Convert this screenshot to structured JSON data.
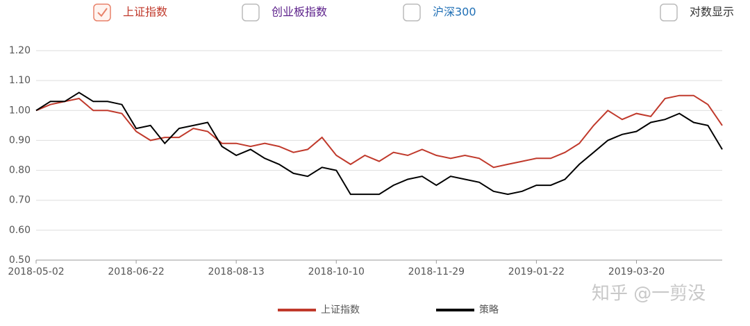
{
  "controls": [
    {
      "label": "上证指数",
      "checked": true,
      "color": "#c0392b"
    },
    {
      "label": "创业板指数",
      "checked": false,
      "color": "#5b1f8a"
    },
    {
      "label": "沪深300",
      "checked": false,
      "color": "#1f6fb5"
    },
    {
      "label": "对数显示",
      "checked": false,
      "color": "#333333"
    }
  ],
  "watermark": "知乎 @一剪没",
  "chart_data": {
    "type": "line",
    "categories": [
      "2018-05-02",
      null,
      null,
      null,
      null,
      null,
      null,
      "2018-06-22",
      null,
      null,
      null,
      null,
      null,
      null,
      "2018-08-13",
      null,
      null,
      null,
      null,
      null,
      null,
      "2018-10-10",
      null,
      null,
      null,
      null,
      null,
      null,
      "2018-11-29",
      null,
      null,
      null,
      null,
      null,
      null,
      "2019-01-22",
      null,
      null,
      null,
      null,
      null,
      null,
      "2019-03-20",
      null,
      null,
      null,
      null,
      null,
      null
    ],
    "series": [
      {
        "name": "上证指数",
        "color": "#c0392b",
        "values": [
          1.0,
          1.02,
          1.03,
          1.04,
          1.0,
          1.0,
          0.99,
          0.93,
          0.9,
          0.91,
          0.91,
          0.94,
          0.93,
          0.89,
          0.89,
          0.88,
          0.89,
          0.88,
          0.86,
          0.87,
          0.91,
          0.85,
          0.82,
          0.85,
          0.83,
          0.86,
          0.85,
          0.87,
          0.85,
          0.84,
          0.85,
          0.84,
          0.81,
          0.82,
          0.83,
          0.84,
          0.84,
          0.86,
          0.89,
          0.95,
          1.0,
          0.97,
          0.99,
          0.98,
          1.04,
          1.05,
          1.05,
          1.02,
          0.95
        ]
      },
      {
        "name": "策略",
        "color": "#000000",
        "values": [
          1.0,
          1.03,
          1.03,
          1.06,
          1.03,
          1.03,
          1.02,
          0.94,
          0.95,
          0.89,
          0.94,
          0.95,
          0.96,
          0.88,
          0.85,
          0.87,
          0.84,
          0.82,
          0.79,
          0.78,
          0.81,
          0.8,
          0.72,
          0.72,
          0.72,
          0.75,
          0.77,
          0.78,
          0.75,
          0.78,
          0.77,
          0.76,
          0.73,
          0.72,
          0.73,
          0.75,
          0.75,
          0.77,
          0.82,
          0.86,
          0.9,
          0.92,
          0.93,
          0.96,
          0.97,
          0.99,
          0.96,
          0.95,
          0.87
        ]
      }
    ],
    "ylim": [
      0.5,
      1.2
    ],
    "yticks": [
      {
        "value": 0.5,
        "label": "0.50"
      },
      {
        "value": 0.6,
        "label": "0.60"
      },
      {
        "value": 0.7,
        "label": "0.70"
      },
      {
        "value": 0.8,
        "label": "0.80"
      },
      {
        "value": 0.9,
        "label": "0.90"
      },
      {
        "value": 1.0,
        "label": "1.00"
      },
      {
        "value": 1.1,
        "label": "1.10"
      },
      {
        "value": 1.2,
        "label": "1.20"
      }
    ],
    "grid": true,
    "legend": "bottom"
  }
}
